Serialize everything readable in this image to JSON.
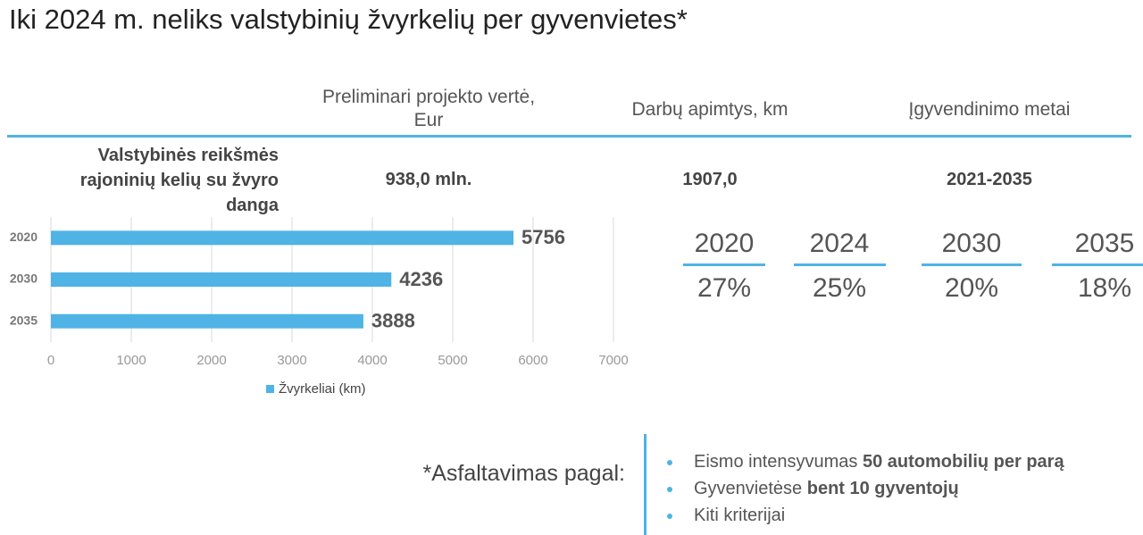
{
  "title": "Iki 2024 m. neliks valstybinių žvyrkelių per gyvenvietes*",
  "table": {
    "headers": [
      "Preliminari projekto vertė, Eur",
      "Darbų apimtys, km",
      "Įgyvendinimo metai"
    ],
    "row_label": "Valstybinės reikšmės rajoninių kelių su žvyro danga",
    "row": [
      "938,0 mln.",
      "1907,0",
      "2021-2035"
    ]
  },
  "chart_data": {
    "type": "bar",
    "orientation": "horizontal",
    "categories": [
      "2020",
      "2030",
      "2035"
    ],
    "series": [
      {
        "name": "Žvyrkeliai (km)",
        "color": "#4fb3e6",
        "values": [
          5756,
          4236,
          3888
        ]
      }
    ],
    "xlim": [
      0,
      7000
    ],
    "xticks": [
      0,
      1000,
      2000,
      3000,
      4000,
      5000,
      6000,
      7000
    ],
    "grid": true
  },
  "shares": {
    "years": [
      "2020",
      "2024",
      "2030",
      "2035"
    ],
    "values": [
      "27%",
      "25%",
      "20%",
      "18%"
    ]
  },
  "footnote": {
    "label": "*Asfaltavimas pagal:",
    "items": [
      {
        "text": "Eismo intensyvumas ",
        "bold": "50 automobilių per parą"
      },
      {
        "text": "Gyvenvietėse ",
        "bold": "bent 10 gyventojų"
      },
      {
        "text": "Kiti kriterijai"
      }
    ]
  }
}
